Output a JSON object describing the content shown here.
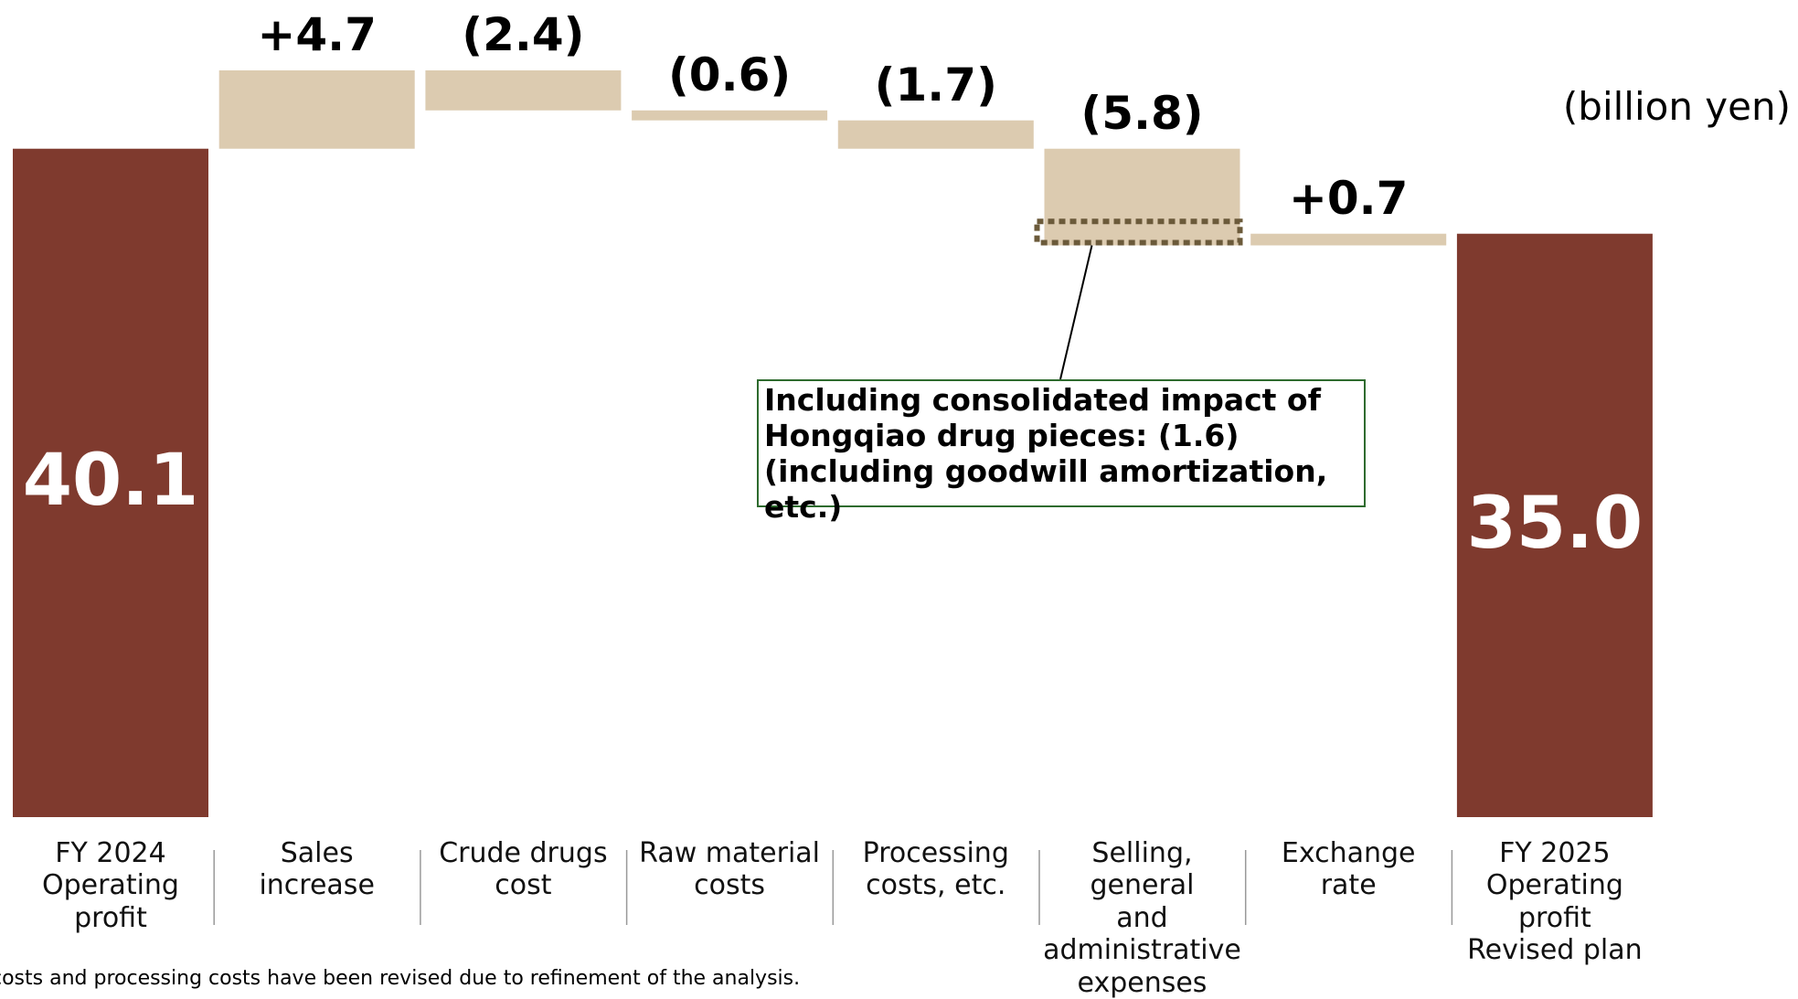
{
  "chart_data": {
    "type": "waterfall",
    "unit_label": "(billion yen)",
    "categories": [
      "FY 2024\nOperating\nprofit",
      "Sales\nincrease",
      "Crude drugs cost",
      "Raw material\ncosts",
      "Processing\ncosts, etc.",
      "Selling, general\nand administrative\nexpenses",
      "Exchange\nrate",
      "FY 2025\nOperating\nprofit\nRevised plan"
    ],
    "values": [
      40.1,
      4.7,
      -2.4,
      -0.6,
      -1.7,
      -5.8,
      0.7,
      35.0
    ],
    "value_labels": [
      "40.1",
      "+4.7",
      "(2.4)",
      "(0.6)",
      "(1.7)",
      "(5.8)",
      "+0.7",
      "35.0"
    ],
    "total_color": "#7f3a2e",
    "change_color": "#dccbb0",
    "annotation": {
      "text": "Including consolidated impact of\nHongqiao drug pieces: (1.6)\n(including goodwill amortization, etc.)",
      "value": -1.6
    },
    "footnote": "costs and processing costs have been revised due to refinement of the analysis."
  }
}
